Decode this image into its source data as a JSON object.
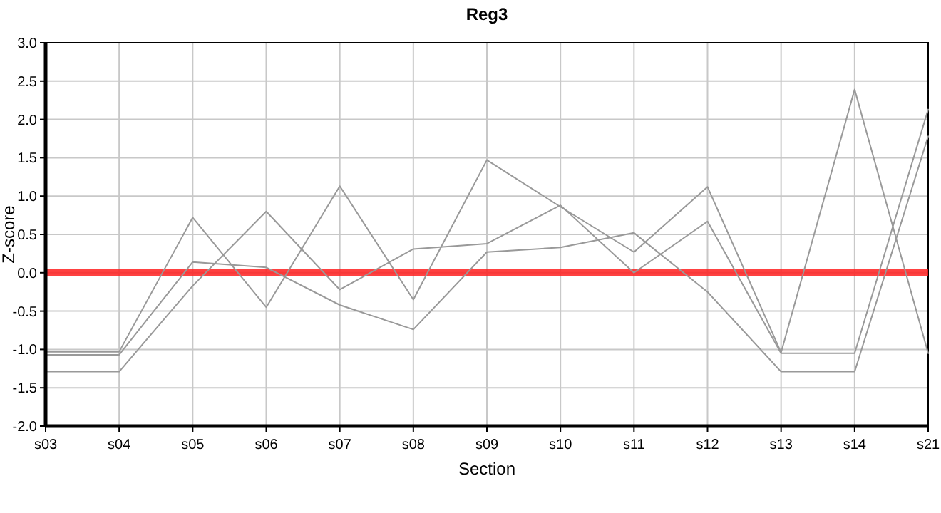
{
  "chart_data": {
    "type": "line",
    "title": "Reg3",
    "xlabel": "Section",
    "ylabel": "Z-score",
    "categories": [
      "s03",
      "s04",
      "s05",
      "s06",
      "s07",
      "s08",
      "s09",
      "s10",
      "s11",
      "s12",
      "s13",
      "s14",
      "s21"
    ],
    "series": [
      {
        "color": "#999999",
        "values": [
          -1.03,
          -1.03,
          0.72,
          -0.45,
          1.13,
          -0.35,
          1.47,
          0.86,
          0.27,
          1.12,
          -1.04,
          2.39,
          -1.05
        ]
      },
      {
        "color": "#999999",
        "values": [
          -1.29,
          -1.29,
          -0.17,
          0.8,
          -0.22,
          0.31,
          0.38,
          0.88,
          0.0,
          0.67,
          -1.05,
          -1.05,
          2.13
        ]
      },
      {
        "color": "#999999",
        "values": [
          -1.07,
          -1.07,
          0.14,
          0.07,
          -0.42,
          -0.74,
          0.27,
          0.33,
          0.52,
          -0.25,
          -1.29,
          -1.29,
          1.78
        ]
      }
    ],
    "ylim": [
      -2,
      3
    ],
    "yticks": [
      {
        "value": -2,
        "label": "-2.0"
      },
      {
        "value": -1.5,
        "label": "-1.5"
      },
      {
        "value": -1,
        "label": "-1.0"
      },
      {
        "value": -0.5,
        "label": "-0.5"
      },
      {
        "value": 0,
        "label": "0.0"
      },
      {
        "value": 0.5,
        "label": "0.5"
      },
      {
        "value": 1,
        "label": "1.0"
      },
      {
        "value": 1.5,
        "label": "1.5"
      },
      {
        "value": 2,
        "label": "2.0"
      },
      {
        "value": 2.5,
        "label": "2.5"
      },
      {
        "value": 3,
        "label": "3.0"
      }
    ],
    "grid": true,
    "marker": "none",
    "line_style": "solid",
    "ref_lines": [
      {
        "axis": "y",
        "value": 0,
        "color": "#ff2020"
      }
    ]
  }
}
